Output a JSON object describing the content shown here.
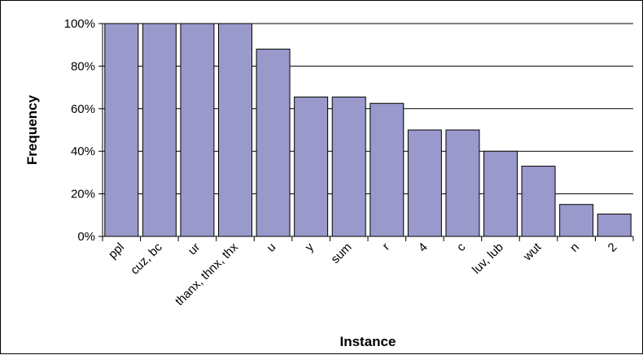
{
  "chart_data": {
    "type": "bar",
    "title": "",
    "xlabel": "Instance",
    "ylabel": "Frequency",
    "categories": [
      "ppl",
      "cuz, bc",
      "ur",
      "thanx, thnx, thx",
      "u",
      "y",
      "sum",
      "r",
      "4",
      "c",
      "luv, lub",
      "wut",
      "n",
      "2"
    ],
    "values": [
      100,
      100,
      100,
      100,
      88,
      65.5,
      65.5,
      62.5,
      50,
      50,
      40,
      33,
      15,
      10.5
    ],
    "ylim": [
      0,
      100
    ],
    "yticks": [
      "0%",
      "20%",
      "40%",
      "60%",
      "80%",
      "100%"
    ],
    "ytick_values": [
      0,
      20,
      40,
      60,
      80,
      100
    ],
    "grid": true,
    "legend": "none",
    "colors": {
      "bar_fill": "#9999cc",
      "bar_stroke": "#000000",
      "grid": "#000000",
      "axis": "#000000"
    }
  }
}
